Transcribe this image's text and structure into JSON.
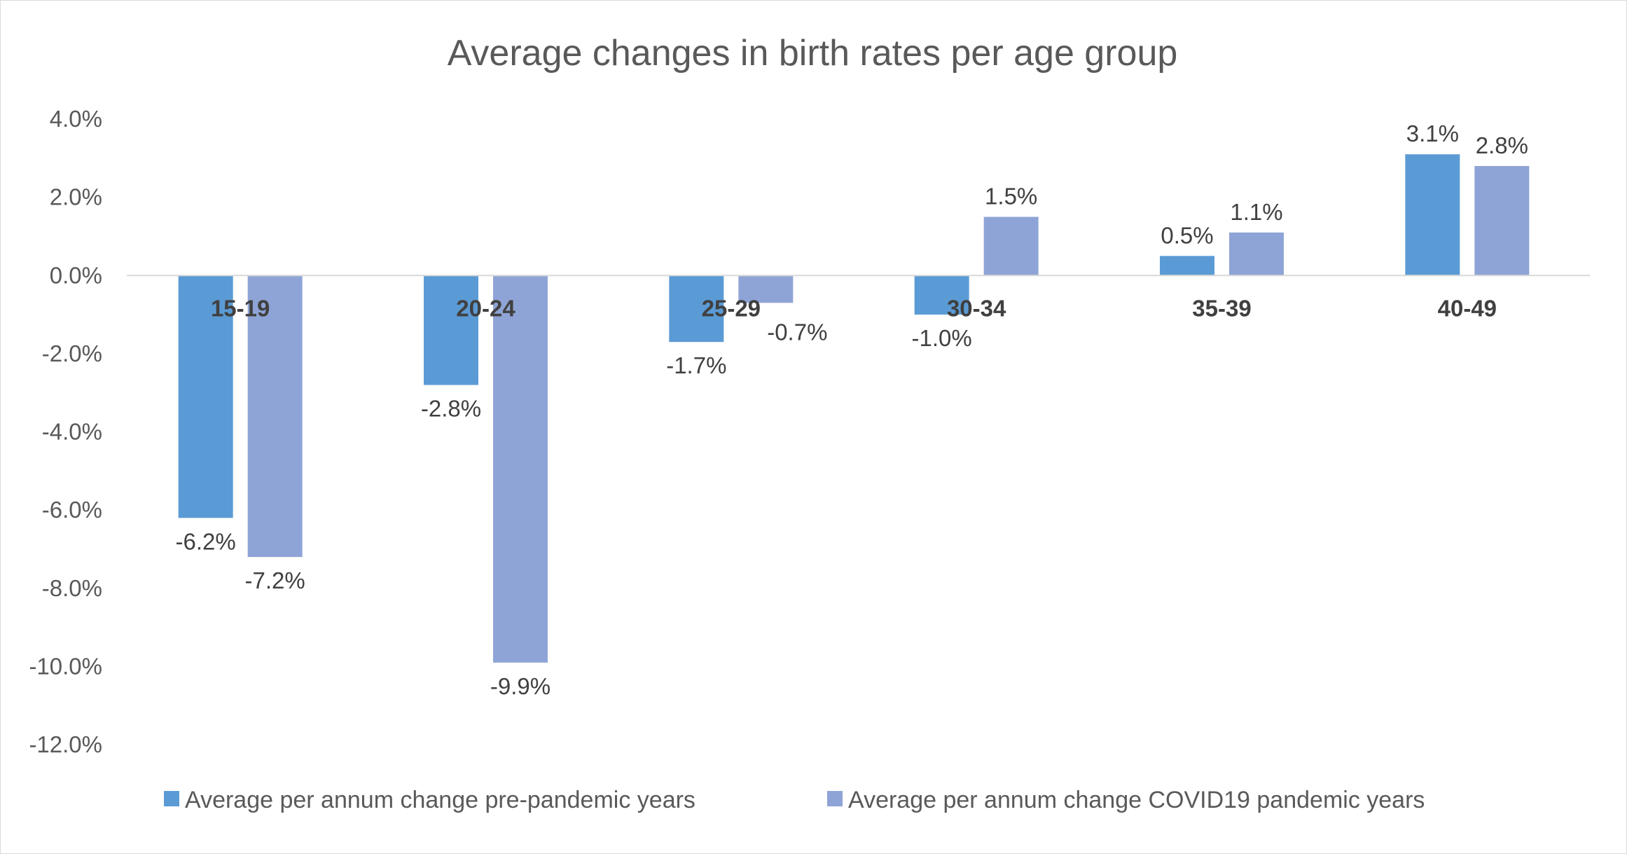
{
  "chart_data": {
    "type": "bar",
    "title": "Average changes in birth rates per age group",
    "categories": [
      "15-19",
      "20-24",
      "25-29",
      "30-34",
      "35-39",
      "40-49"
    ],
    "series": [
      {
        "name": "Average per annum change pre-pandemic years",
        "color": "#5b9bd5",
        "values": [
          -6.2,
          -2.8,
          -1.7,
          -1.0,
          0.5,
          3.1
        ],
        "labels": [
          "-6.2%",
          "-2.8%",
          "-1.7%",
          "-1.0%",
          "0.5%",
          "3.1%"
        ]
      },
      {
        "name": "Average per annum change COVID19 pandemic years",
        "color": "#8fa4d6",
        "values": [
          -7.2,
          -9.9,
          -0.7,
          1.5,
          1.1,
          2.8
        ],
        "labels": [
          "-7.2%",
          "-9.9%",
          "-0.7%",
          "1.5%",
          "1.1%",
          "2.8%"
        ]
      }
    ],
    "ylim": [
      -12.0,
      4.0
    ],
    "ytick_labels": [
      "4.0%",
      "2.0%",
      "0.0%",
      "-2.0%",
      "-4.0%",
      "-6.0%",
      "-8.0%",
      "-10.0%",
      "-12.0%"
    ],
    "xlabel": "",
    "ylabel": "",
    "grid": false,
    "legend_position": "bottom"
  }
}
